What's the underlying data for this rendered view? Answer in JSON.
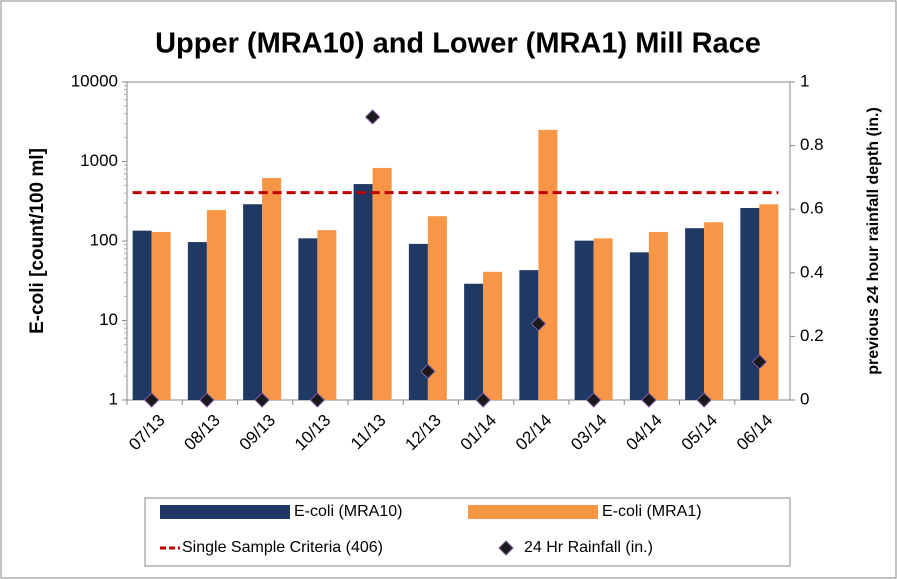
{
  "chart_data": {
    "type": "bar",
    "title": "Upper (MRA10) and Lower (MRA1) Mill Race",
    "y_label": "E-coli [count/100 ml]",
    "y2_label": "previous 24 hour  rainfall  depth  (in.)",
    "categories": [
      "07/13",
      "08/13",
      "09/13",
      "10/13",
      "11/13",
      "12/13",
      "01/14",
      "02/14",
      "03/14",
      "04/14",
      "05/14",
      "06/14"
    ],
    "ylim": [
      1,
      10000
    ],
    "yticks": [
      1,
      10,
      100,
      1000,
      10000
    ],
    "log_y": true,
    "y2lim": [
      0,
      1
    ],
    "y2ticks": [
      0,
      0.2,
      0.4,
      0.6,
      0.8,
      1
    ],
    "series": [
      {
        "name": "E-coli (MRA10)",
        "type": "bar",
        "color": "#1f3864",
        "values": [
          135,
          97,
          290,
          108,
          520,
          92,
          29,
          43,
          101,
          72,
          145,
          260
        ]
      },
      {
        "name": "E-coli (MRA1)",
        "type": "bar",
        "color": "#f79646",
        "values": [
          130,
          245,
          620,
          137,
          830,
          205,
          41,
          2500,
          108,
          130,
          172,
          290
        ]
      },
      {
        "name": "Single Sample Criteria (406)",
        "type": "line",
        "linestyle": "dashed",
        "color": "#c00000",
        "values": [
          406,
          406,
          406,
          406,
          406,
          406,
          406,
          406,
          406,
          406,
          406,
          406
        ]
      },
      {
        "name": "24 Hr Rainfall (in.)",
        "type": "scatter",
        "axis": "y2",
        "color": "#1a1a1a",
        "edge": "#7d5ba6",
        "values": [
          0,
          0,
          0,
          0,
          0.89,
          0.09,
          0,
          0.24,
          0,
          0,
          0,
          0.12
        ]
      }
    ],
    "legend": "bottom"
  }
}
